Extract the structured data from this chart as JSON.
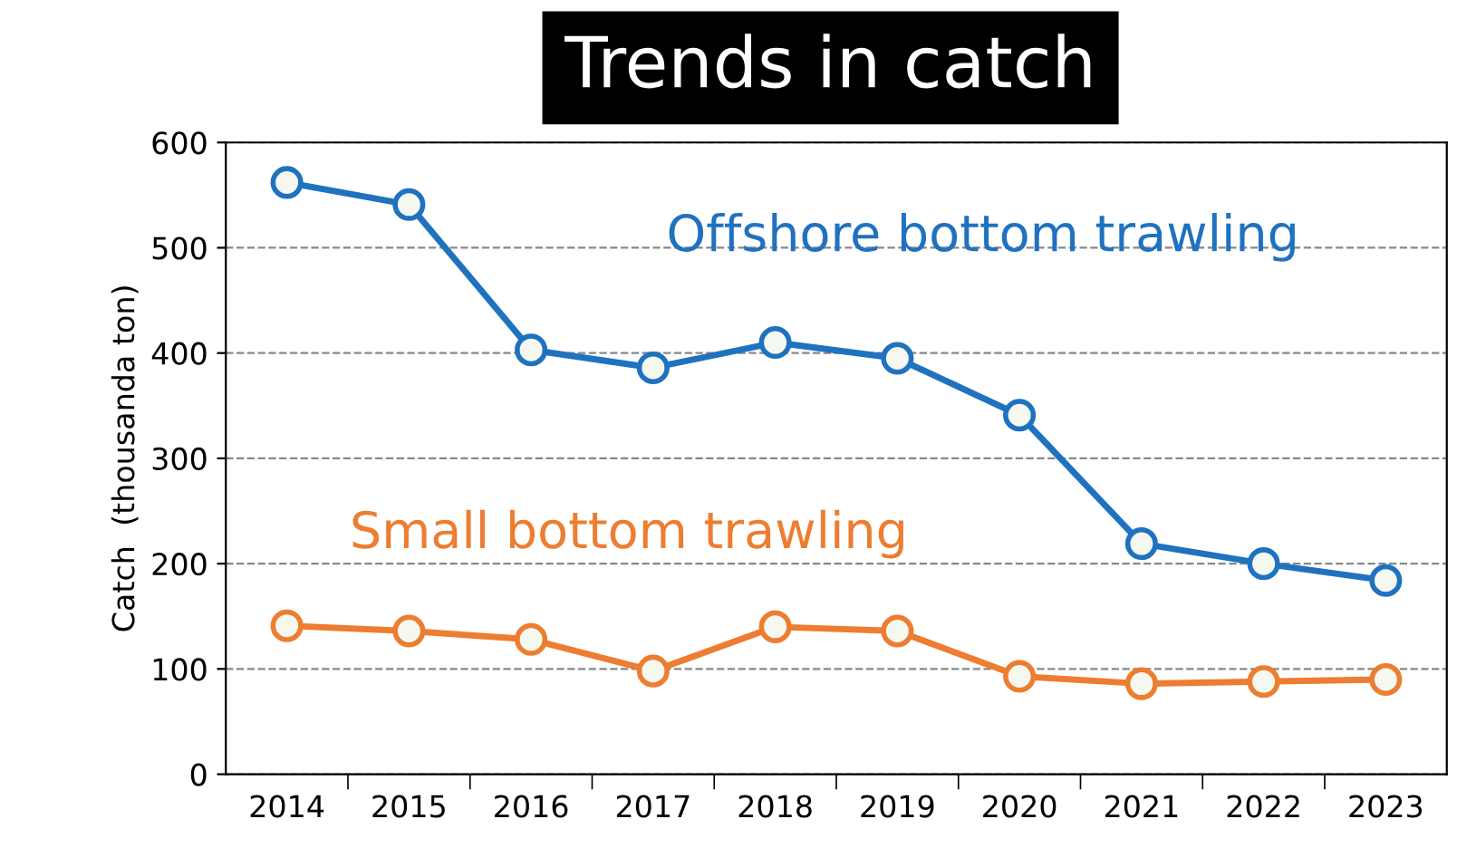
{
  "chart_data": {
    "type": "line",
    "title": "Trends in catch",
    "ylabel": "Catch  (thousanda ton)",
    "categories": [
      "2014",
      "2015",
      "2016",
      "2017",
      "2018",
      "2019",
      "2020",
      "2021",
      "2022",
      "2023"
    ],
    "series": [
      {
        "name": "Offshore bottom trawling",
        "color": "#1f72c0",
        "values": [
          562,
          541,
          403,
          386,
          410,
          395,
          341,
          219,
          200,
          184
        ]
      },
      {
        "name": "Small bottom trawling",
        "color": "#ed7d31",
        "values": [
          141,
          136,
          128,
          98,
          140,
          136,
          93,
          86,
          88,
          90
        ]
      }
    ],
    "ylim": [
      0,
      600
    ],
    "yticks": [
      0,
      100,
      200,
      300,
      400,
      500,
      600
    ],
    "grid": "y",
    "legend": false,
    "marker": "circle",
    "line_style": "solid"
  }
}
